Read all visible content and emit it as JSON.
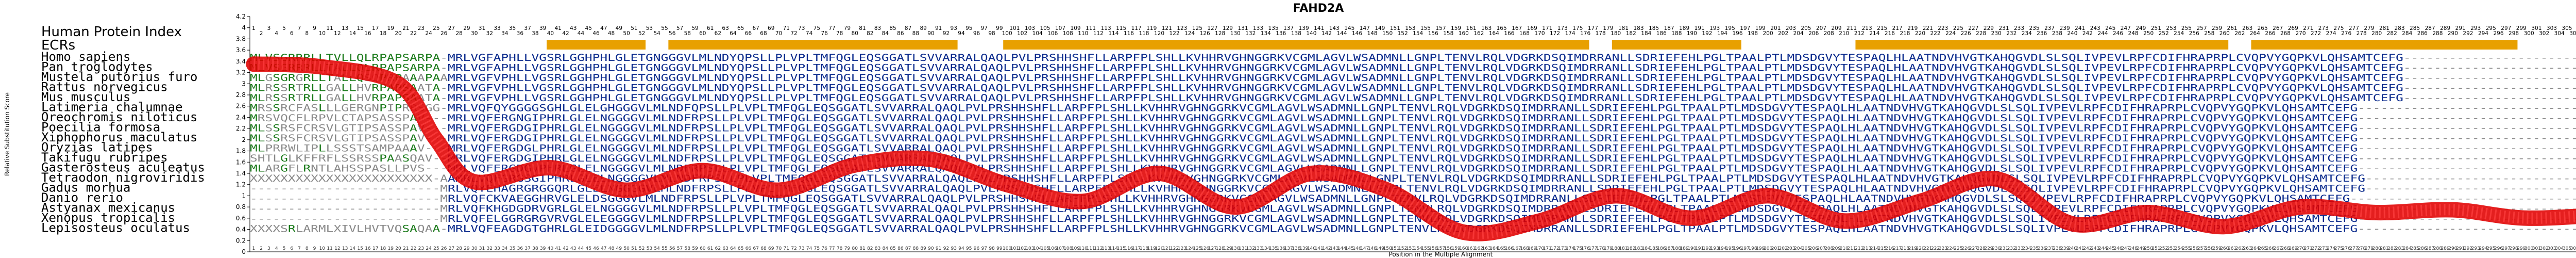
{
  "chart_data": {
    "type": "line",
    "title": "FAHD2A",
    "ylabel": "Relative Substitution Score",
    "xlabel": "Position in the Multiple Alignment",
    "ylim": [
      0,
      4.2
    ],
    "yticks": [
      "0",
      "0.2",
      "0.4",
      "0.6",
      "0.8",
      "1",
      "1.2",
      "1.4",
      "1.6",
      "1.8",
      "2",
      "2.2",
      "2.4",
      "2.6",
      "2.8",
      "3",
      "3.2",
      "3.4",
      "3.6",
      "3.8",
      "4",
      "4.2"
    ],
    "xlim": [
      1,
      313
    ],
    "panel_labels": [
      "Human Protein Index",
      "ECRs"
    ],
    "x": [
      1,
      10,
      20,
      25,
      30,
      40,
      50,
      60,
      70,
      80,
      90,
      100,
      110,
      120,
      130,
      140,
      150,
      160,
      170,
      180,
      190,
      200,
      210,
      220,
      230,
      240,
      250,
      260,
      270,
      280,
      290,
      300,
      313
    ],
    "values": [
      3.35,
      3.3,
      3.0,
      2.0,
      1.25,
      1.5,
      1.1,
      1.45,
      1.1,
      1.55,
      1.65,
      1.2,
      0.9,
      1.4,
      0.8,
      1.4,
      1.1,
      0.35,
      0.55,
      1.0,
      0.6,
      1.0,
      0.55,
      0.9,
      1.3,
      0.5,
      0.7,
      0.45,
      0.8,
      0.7,
      0.75,
      0.6,
      0.7
    ],
    "species": [
      "Homo sapiens",
      "Pan troglodytes",
      "Mustela putorius furo",
      "Rattus norvegicus",
      "Mus musculus",
      "Latimeria chalumnae",
      "Oreochromis niloticus",
      "Poecilia formosa",
      "Xiphophorus maculatus",
      "Oryzias latipes",
      "Takifugu rubripes",
      "Gasterosteus aculeatus",
      "Tetraodon nigroviridis",
      "Gadus morhua",
      "Danio rerio",
      "Astyanax mexicanus",
      "Xenopus tropicalis",
      "Lepisosteus oculatus"
    ],
    "sequences": [
      "MLVSGRRRLLTVLLQLRPAPSARPA-MRLVGFAPHLLVGSRLGGHPHLGLETGNGGGVLMLNDYQPSLLPLVPLTMFQGLEQSGGATLSVVARRALQAQLPVLPRSHHSHFLLARPFPLSHLLKVHHRVGHNGGRKVCGMLAGVLWSADMNLLGNPLTENVLRQLVDGRKDSQIMDRRANLLSDRIEFEHLPGLTPAALPTLMDSDGVYTESPAQLHLAATNDVHVGTKAHQGVDLSLSQLIVPEVLRPFCDIFHRAPRPLCVQPVYGQPKVLQHSAMTCEFG",
      "MLVSGRRRLLTALLQLRPAPSARPA-MRLVGFAPHLLVGSRLGGHPHLGLETGNGGGVLMLNDYQPSLLPLVPLTMFQGLEQSGGATLSVVARRALQAQLPVLPRSHHSHFLLARPFPLSHLLKVHHRVGHNGGRKVCGMLAGVLWSADMNLLGNPLTENVLRQLVDGRKDSQIMDRRANLLSDRIEFEHLPGLTPAALPTLMDSDGVYTESPAQLHLAATNDVHVGTKAHQGVDLSLSQLIVPEVLRPFCDIFHRAPRPLCVQPVYGQPKVLQHSAMTCEFG",
      "MLGSGRGRLLTALLQSQPRPAAAPAAMRLVGFVPHLLVGSRLGGHPHLGLETGNGGGVLMLNDYQPSLLPLVPLTMFQGLEQSGGATLSVVARRALQAQLPVLPRSHHSHFLLARPFPLSHLLKVHHRVGHNGGRKVCGMLAGVLWSADMNLLGNPLTENVLRQLVDGRKDSQIMDRRANLLSDRIEFEHLPGLTPAALPTLMDSDGVYTESPAQLHLAATNDVHVGTKAHQGVDLSLSQLIVPEVLRPFCDIFHRAPRPLCVQPVYGQPKVLQHSAMTCEFG",
      "MLRSSRTRLLGALLHVRPAPSAATA-MRLVGFVPHLLVGSRLGGHPHLGLETGNGGGVLMLNDYQPSLLPLVPLTMFQGLEQSGGATLSVVARRALQAQLPVLPRSHHSHFLLARPFPLSHLLKVHHRVGHNGGRKVCGMLAGVLWSADMNLLGNPLTENVLRQLVDGRKDSQIMDRRANLLSDRIEFEHLPGLTPAALPTLMDSDGVYTESPAQLHLAATNDVHVGTKAHQGVDLSLSQLIVPEVLRPFCDIFHRAPRPLCVQPVYGQPKVLQHSAMTCEFG",
      "MLRSSRTRLLGALLHVRPAPSAATA-MRLVGFVPHLLVGSRLGGHPHLGLETGNGGGVLMLNDYQPSLLPLVPLTMFQGLEQSGGATLSVVARRALQAQLPVLPRSHHSHFLLARPFPLSHLLKVHHRVGHNGGRKVCGMLAGVLWSADMNLLGNPLTENVLRQLVDGRKDSQIMDRRANLLSDRIEFEHLPGLTPAALPTLMDSDGVYTESPAQLHLAATNDVHVGTKAHQGVDLSLSQLIVPEVLRPFCDIFHRAPRPLCVQPVYGQPKVLQHSAMTCEFG",
      "MRSSRCFASLLLGERGNPIPRRSGG-MRLVQFQYGGGGSGHLGLELGHGGGVLMLNDFQPSLLPLVPLTMFQGLEQSGGATLSVVARRALQAQLPVLPRSHHSHFLLARPFPLSHLLKVHHRVGHNGGRKVCGMLAGVLWSADMNLLGNPLTENVLRQLVDGRKDSQIMDRRANLLSDRIEFEHLPGLTPAALPTLMDSDGVYTESPAQLHLAATNDVHVGTKAHQGVDLSLSQLIVPEVLRPFCDIFHRAPRPLCVQPVYGQPKVLQHSAMTCEFG",
      "MRSVQCFLRPVLCTAPSASSPAV---MRLVQFERGNGIPHRLGLELNGGGGVLMLNDFRPSLLPLVPLTMFQGLEQSGGATLSVVARRALQAQLPVLPRSHHSHFLLARPFPLSHLLKVHHRVGHNGGRKVCGMLAGVLWSADMNLLGNPLTENVLRQLVDGRKDSQIMDRRANLLSDRIEFEHLPGLTPAALPTLMDSDGVYTESPAQLHLAATNDVHVGTKAHQGVDLSLSQLIVPEVLRPFCDIFHRAPRPLCVQPVYGQPKVLQHSAMTCEFG",
      "MLSSRSFCRSVLGTIPSASSPAV---MRLVQFERGDGIPHRLGLELNGGGGVLMLNDFRPSLLPLVPLTMFQGLEQSGGATLSVVARRALQAQLPVLPRSHHSHFLLARPFPLSHLLKVHHRVGHNGGRKVCGMLAGVLWSADMNLLGNPLTENVLRQLVDGRKDSQIMDRRANLLSDRIEFEHLPGLTPAALPTLMDSDGVYTESPAQLHLAATNDVHVGTKAHQGVDLSLSQLIVPEVLRPFCDIFHRAPRPLCVQPVYGQPKVLQHSAMTCEFG",
      "MLSSRSFCRSVLGTIPSASSPAV---MRLVQFERGDGIPHRLGLELNGGGGVLMLNDFRPSLLPLVPLTMFQGLEQSGGATLSVVARRALQAQLPVLPRSHHSHFLLARPFPLSHLLKVHHRVGHNGGRKVCGMLAGVLWSADMNLLGNPLTENVLRQLVDGRKDSQIMDRRANLLSDRIEFEHLPGLTPAALPTLMDSDGVYTESPAQLHLAATNDVHVGTKAHQGVDLSLSQLIVPEVLRPFCDIFHRAPRPLCVQPVYGQPKVLQHSAMTCEFG",
      "MLPRRWLIPLLSSSTSAMPAAAV---MRLVQFERGDGLPHRLGLELNGGGGVLMLNDFRPSLLPLVPLTMFQGLEQSGGATLSVVARRALQAQLPVLPRSHHSHFLLARPFPLSHLLKVHHRVGHNGGRKVCGMLAGVLWSADMNLLGNPLTENVLRQLVDGRKDSQIMDRRANLLSDRIEFEHLPGLTPAALPTLMDSDGVYTESPAQLHLAATNDVHVGTKAHQGVDLSLSQLIVPEVLRPFCDIFHRAPRPLCVQPVYGQPKVLQHSAMTCEFG",
      "SHTLGLKFFRFLSSRSSPAASQAV--MRLVQFERGDGIPHRLGLELNGGGGVLMLNDFRPSLLPLVPLTMFQGLEQSGGATLSVVARRALQAQLPVLPRSHHSHFLLARPFPLSHLLKVHHRVGHNGGRKVCGMLAGVLWSADMNLLGNPLTENVLRQLVDGRKDSQIMDRRANLLSDRIEFEHLPGLTPAALPTLMDSDGVYTESPAQLHLAATNDVHVGTKAHQGVDLSLSQLIVPEVLRPFCDIFHRAPRPLCVQPVYGQPKVLQHSAMTCEFG",
      "MLARGFLRNTLAHSSPASLLPVS---MRLVQFERGDGVPHRLGLELNGGGGVLMLNDFRPSLLPLVPLTMFQGLEQSGGATLSVVARRALQAQLPVLPRSHHSHFLLARPFPLSHLLKVHHRVGHNGGRKVCGMLAGVLWSADMNLLGNPLTENVLRQLVDGRKDSQIMDRRANLLSDRIEFEHLPGLTPAALPTLMDSDGVYTESPAQLHLAATNDVHVGTKAHQGVDLSLSQLIVPEVLRPFCDIFHRAPRPLCVQPVYGQPKVLQHSAMTCEFG",
      "XXXXXXXXXXXXXXXXXXXXXXXX-AAMRLVQFGRGSGIPHRLGLELNGGGGVLMLNDFRPSLLPLVPLTMFQGLEQSGGATLSVVARRALQAQLPVLPRSHHSHFLLARPFPLSHLLKVHHRVGHNGGRKVCGMLAGVLWSADMNLLGNPLTENVLRQLVDGRKDSQIMDRRANLLSDRIEFEHLPGLTPAALPTLMDSDGVYTESPAQLHLAATNDVHVGTKAHQGVDLSLSQLIVPEVLRPFCDIFHRAPRPLCVQPVYGQPKVLQHSAMTCEFG",
      "-------------------------MRLVQYEHAGRGRGGQRLGLELNGGGGVLMLNDFRPSLLPLVPLTMFQGLEQSGGATLSVVARRALQAQLPVLPRSHHSHFLLARPFPLSHLLKVHHRVGHNGGRKVCGMLAGVLWSADMNLLGNPLTENVLRQLVDGRKDSQIMDRRANLLSDRIEFEHLPGLTPAALPTLMDSDGVYTESPAQLHLAATNDVHVGTKAHQGVDLSLSQLIVPEVLRPFCDIFHRAPRPLCVQPVYGQPKVLQHSAMTCEFG",
      "-------------------------MRLVQFCKVAEGGHRVGLELDSGGGVLMLNDFRPSLLPLVPLTMFQGLEQSGGATLSVVARRALQAQLPVLPRSHHSHFLLARPFPLSHLLKVHHRVGHNGGRKVCGMLAGVLWSADMNLLGNPLTENVLRQLVDGRKDSQIMDRRANLLSDRIEFEHLPGLTPAALPTLMDSDGVYTESPAQLHLAATNDVHVGTKAHQGVDLSLSQLIVPEVLRPFCDIFHRAPRPLCVQPVYGQPKVLQHSAMTCEFG",
      "-------------------------MRLVQFKHGDGDRVGRLGLELNGGGGVLMLNDFRPSLLPLVPLTMFQGLEQSGGATLSVVARRALQAQLPVLPRSHHSHFLLARPFPLSHLLKVHHRVGHNGGRKVCGMLAGVLWSADMNLLGNPLTENVLRQLVDGRKDSQIMDRRANLLSDRIEFEHLPGLTPAALPTLMDSDGVYTESPAQLHLAATNDVHVGTKAHQGVDLSLSQLIVPEVLRPFCDIFHRAPRPLCVQPVYGQPKVLQHSAMTCEFG",
      "-------------------------MRLVQFELGGRGRGVRVGLELEGGGGVLMLNDFRPSLLPLVPLTMFQGLEQSGGATLSVVARRALQAQLPVLPRSHHSHFLLARPFPLSHLLKVHHRVGHNGGRKVCGMLAGVLWSADMNLLGNPLTENVLRQLVDGRKDSQIMDRRANLLSDRIEFEHLPGLTPAALPTLMDSDGVYTESPAQLHLAATNDVHVGTKAHQGVDLSLSQLIVPEVLRPFCDIFHRAPRPLCVQPVYGQPKVLQHSAMTCEFG",
      "XXXXSRLARMLXIVLHVTVQSAQAA-MRLVQFEAGDGTGHRLGLEIDGGGGVLMLNDFRPSLLPLVPLTMFQGLEQSGGATLSVVARRALQAQLPVLPRSHHSHFLLARPFPLSHLLKVHHRVGHNGGRKVCGMLAGVLWSADMNLLGNPLTENVLRQLVDGRKDSQIMDRRANLLSDRIEFEHLPGLTPAALPTLMDSDGVYTESPAQLHLAATNDVHVGTKAHQGVDLSLSQLIVPEVLRPFCDIFHRAPRPLCVQPVYGQPKVLQHSAMTCEFG"
    ],
    "ecr_ranges": [
      [
        40,
        52
      ],
      [
        56,
        93
      ],
      [
        100,
        176
      ],
      [
        180,
        196
      ],
      [
        212,
        260
      ],
      [
        264,
        298
      ]
    ],
    "colors": {
      "curve": "#e00000",
      "curve_highlight": "#ff4040",
      "conserved": "#0a2a8c",
      "partial": "#1a7a1a",
      "variable": "#8a8a8a",
      "ecr": "#e8a000",
      "axis": "#000000"
    },
    "grid": false
  }
}
